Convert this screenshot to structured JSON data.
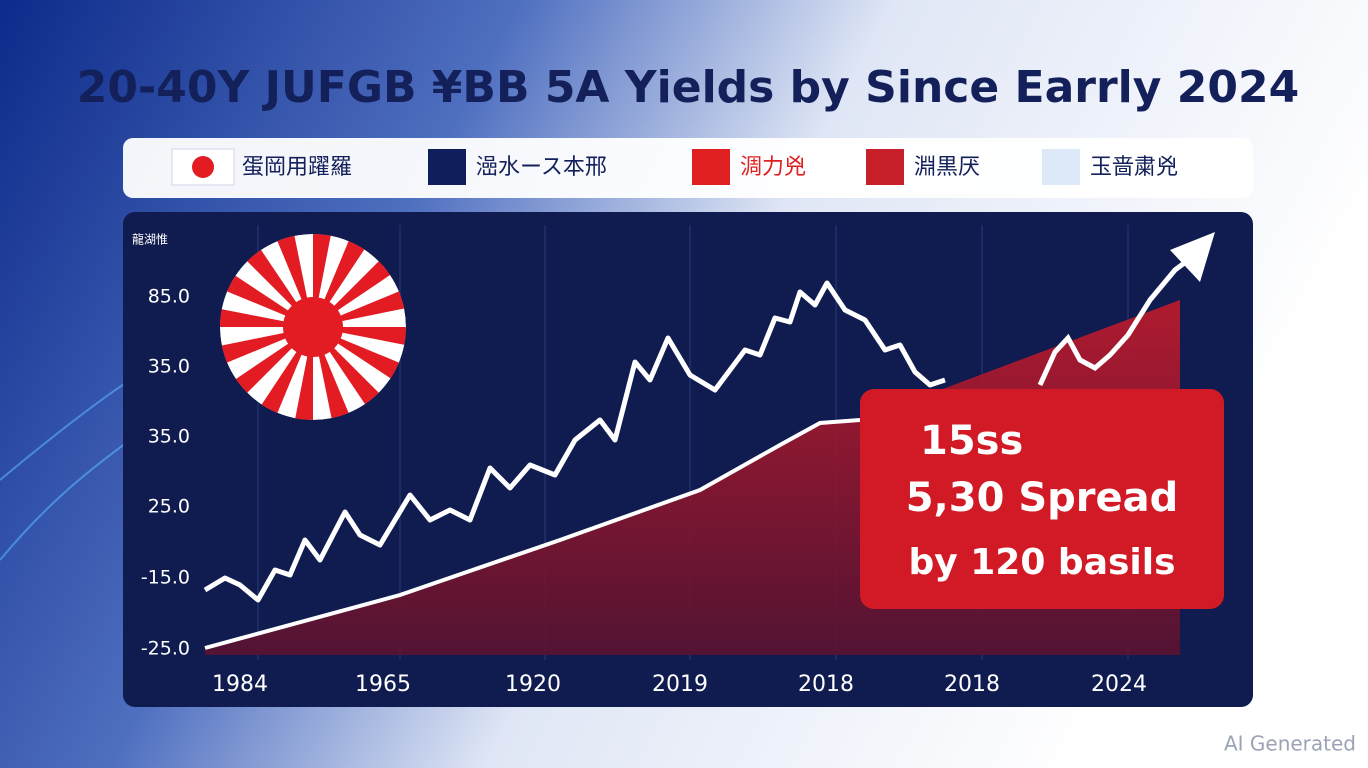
{
  "title": "20-40Y JUFGB ¥BB  5A Yields by Since Earrly 2024",
  "legend": [
    {
      "label": "蛋岡用躍羅",
      "color": "#ffffff"
    },
    {
      "label": "澏水ース本邢",
      "color": "#0f1f5c"
    },
    {
      "label": "淍力兇",
      "color": "#e02020"
    },
    {
      "label": "淵黒厌",
      "color": "#c8202a"
    },
    {
      "label": "玉啬粛兇",
      "color": "#dde9f8"
    }
  ],
  "axis_caption": "龍湖惟",
  "y_labels": [
    "85.0",
    "35.0",
    "35.0",
    "25.0",
    "-15.0",
    "-25.0"
  ],
  "x_labels": [
    "1984",
    "1965",
    "1920",
    "2019",
    "2018",
    "2018",
    "2024"
  ],
  "callout": [
    "15ss",
    "5,30 Spread",
    "by 120 basils"
  ],
  "watermark": "AI Generated"
}
